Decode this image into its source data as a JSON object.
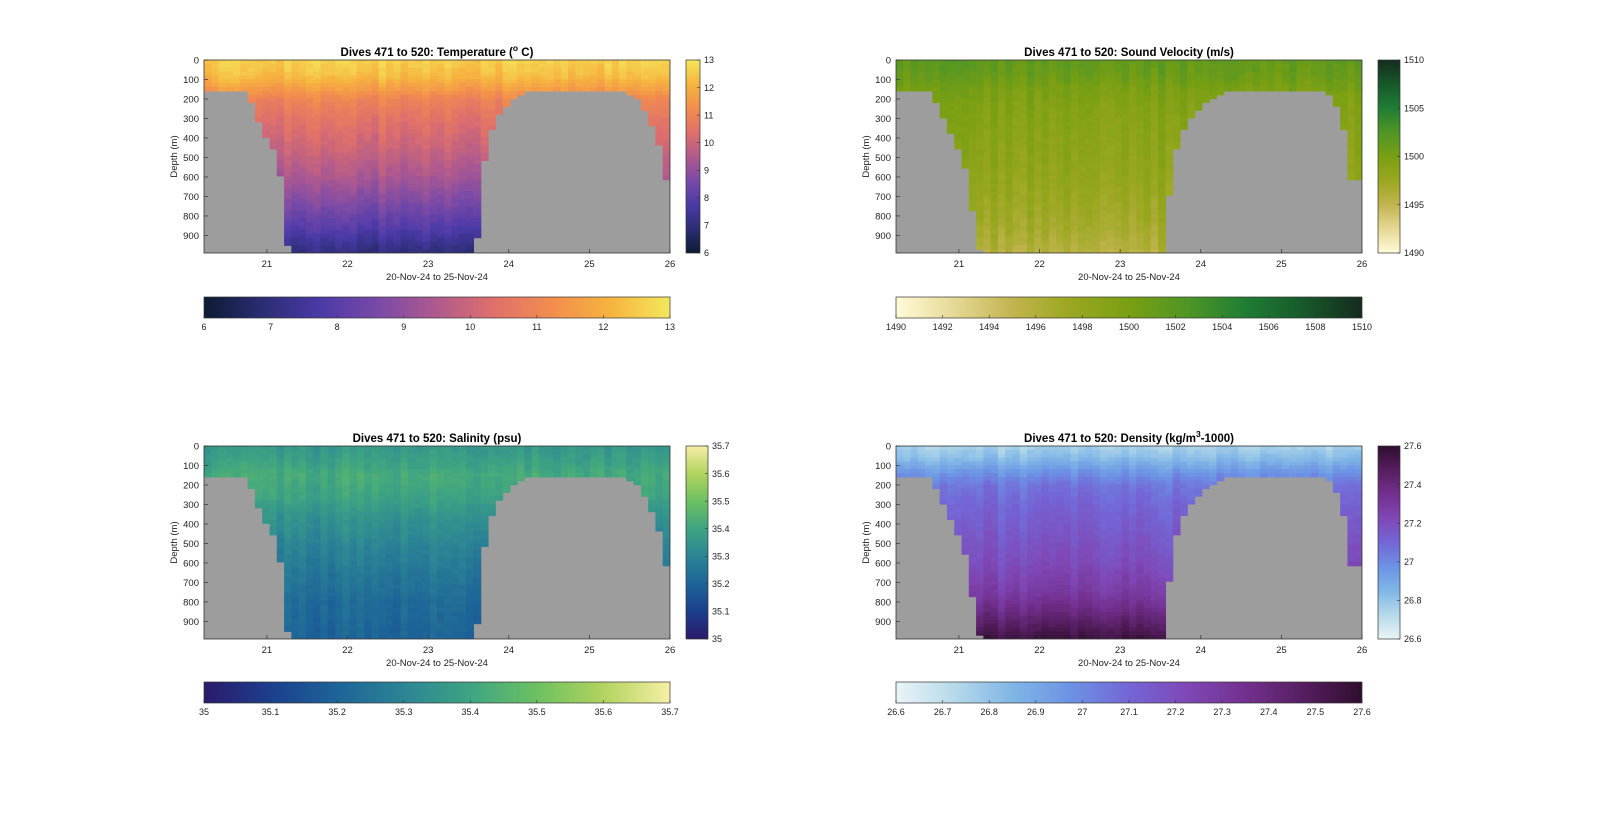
{
  "chart_data": [
    {
      "type": "heatmap",
      "title": "Dives 471 to 520: Temperature (",
      "title_sup": "o",
      "title_end": " C)",
      "xlabel": "20-Nov-24 to 25-Nov-24",
      "ylabel": "Depth (m)",
      "x_ticks": [
        "21",
        "22",
        "23",
        "24",
        "25",
        "26"
      ],
      "y_ticks": [
        "0",
        "100",
        "200",
        "300",
        "400",
        "500",
        "600",
        "700",
        "800",
        "900"
      ],
      "xlim": [
        20.22,
        26.0
      ],
      "ylim": [
        0,
        990
      ],
      "clim": [
        6,
        13
      ],
      "colorbar_ticks": [
        "6",
        "7",
        "8",
        "9",
        "10",
        "11",
        "12",
        "13"
      ],
      "horizontal_colorbar_ticks": [
        "6",
        "7",
        "8",
        "9",
        "10",
        "11",
        "12",
        "13"
      ],
      "colormap": [
        "#0d1b33",
        "#2b2d73",
        "#4b3aa8",
        "#7a4aa7",
        "#b05a8e",
        "#e0706a",
        "#f28e4d",
        "#f6b43f",
        "#f4e85c"
      ],
      "profile": [
        [
          0,
          12.6
        ],
        [
          80,
          12.3
        ],
        [
          140,
          11.7
        ],
        [
          200,
          11.0
        ],
        [
          300,
          10.5
        ],
        [
          450,
          10.0
        ],
        [
          600,
          9.4
        ],
        [
          750,
          8.6
        ],
        [
          850,
          8.0
        ],
        [
          950,
          7.3
        ],
        [
          990,
          7.0
        ]
      ],
      "no_data_color": "#9d9d9d",
      "seafloor": [
        [
          20.22,
          155
        ],
        [
          20.7,
          158
        ],
        [
          20.8,
          205
        ],
        [
          20.88,
          300
        ],
        [
          21.0,
          400
        ],
        [
          21.15,
          520
        ],
        [
          21.27,
          990
        ],
        [
          23.6,
          990
        ],
        [
          23.62,
          740
        ],
        [
          23.72,
          440
        ],
        [
          23.8,
          330
        ],
        [
          23.92,
          250
        ],
        [
          24.05,
          200
        ],
        [
          24.2,
          165
        ],
        [
          24.4,
          158
        ],
        [
          25.3,
          158
        ],
        [
          25.55,
          175
        ],
        [
          25.65,
          230
        ],
        [
          25.75,
          290
        ],
        [
          25.8,
          400
        ],
        [
          25.87,
          430
        ],
        [
          25.88,
          600
        ],
        [
          26.0,
          630
        ]
      ]
    },
    {
      "type": "heatmap",
      "title": "Dives 471 to 520: Sound Velocity (m/s)",
      "xlabel": "20-Nov-24 to 25-Nov-24",
      "ylabel": "Depth (m)",
      "x_ticks": [
        "21",
        "22",
        "23",
        "24",
        "25",
        "26"
      ],
      "y_ticks": [
        "0",
        "100",
        "200",
        "300",
        "400",
        "500",
        "600",
        "700",
        "800",
        "900"
      ],
      "xlim": [
        20.22,
        26.0
      ],
      "ylim": [
        0,
        990
      ],
      "clim": [
        1490,
        1510
      ],
      "colorbar_ticks": [
        "1490",
        "1495",
        "1500",
        "1505",
        "1510"
      ],
      "horizontal_colorbar_ticks": [
        "1490",
        "1492",
        "1494",
        "1496",
        "1498",
        "1500",
        "1502",
        "1504",
        "1506",
        "1508",
        "1510"
      ],
      "colormap": [
        "#fffbd8",
        "#e5d895",
        "#c2b44f",
        "#9aa720",
        "#7a9f12",
        "#4f9626",
        "#1f7d33",
        "#17592a",
        "#152b1f"
      ],
      "profile": [
        [
          0,
          1501.5
        ],
        [
          80,
          1501.0
        ],
        [
          150,
          1500.0
        ],
        [
          250,
          1499.3
        ],
        [
          400,
          1498.8
        ],
        [
          550,
          1498.4
        ],
        [
          700,
          1497.7
        ],
        [
          850,
          1497.0
        ],
        [
          950,
          1496.2
        ],
        [
          990,
          1495.8
        ]
      ],
      "no_data_color": "#9d9d9d",
      "seafloor": [
        [
          20.22,
          155
        ],
        [
          20.62,
          158
        ],
        [
          20.72,
          210
        ],
        [
          20.82,
          320
        ],
        [
          20.95,
          420
        ],
        [
          21.06,
          520
        ],
        [
          21.27,
          990
        ],
        [
          23.55,
          990
        ],
        [
          23.57,
          800
        ],
        [
          23.67,
          530
        ],
        [
          23.72,
          410
        ],
        [
          23.85,
          320
        ],
        [
          23.98,
          250
        ],
        [
          24.1,
          200
        ],
        [
          24.3,
          165
        ],
        [
          24.4,
          155
        ],
        [
          25.55,
          158
        ],
        [
          25.65,
          190
        ],
        [
          25.72,
          280
        ],
        [
          25.8,
          380
        ],
        [
          25.82,
          600
        ],
        [
          26.0,
          620
        ]
      ]
    },
    {
      "type": "heatmap",
      "title": "Dives 471 to 520: Salinity (psu)",
      "xlabel": "20-Nov-24 to 25-Nov-24",
      "ylabel": "Depth (m)",
      "x_ticks": [
        "21",
        "22",
        "23",
        "24",
        "25",
        "26"
      ],
      "y_ticks": [
        "0",
        "100",
        "200",
        "300",
        "400",
        "500",
        "600",
        "700",
        "800",
        "900"
      ],
      "xlim": [
        20.22,
        26.0
      ],
      "ylim": [
        0,
        990
      ],
      "clim": [
        35,
        35.7
      ],
      "colorbar_ticks": [
        "35",
        "35.1",
        "35.2",
        "35.3",
        "35.4",
        "35.5",
        "35.6",
        "35.7"
      ],
      "horizontal_colorbar_ticks": [
        "35",
        "35.1",
        "35.2",
        "35.3",
        "35.4",
        "35.5",
        "35.6",
        "35.7"
      ],
      "colormap": [
        "#2b1a6a",
        "#1c3f8d",
        "#1d6498",
        "#2c8595",
        "#3ea482",
        "#6cc061",
        "#b2d35f",
        "#f6efa6"
      ],
      "profile": [
        [
          0,
          35.36
        ],
        [
          60,
          35.38
        ],
        [
          150,
          35.42
        ],
        [
          250,
          35.4
        ],
        [
          350,
          35.35
        ],
        [
          500,
          35.3
        ],
        [
          650,
          35.26
        ],
        [
          800,
          35.22
        ],
        [
          990,
          35.2
        ]
      ],
      "no_data_color": "#9d9d9d",
      "seafloor": [
        [
          20.22,
          155
        ],
        [
          20.7,
          158
        ],
        [
          20.8,
          205
        ],
        [
          20.88,
          300
        ],
        [
          21.0,
          400
        ],
        [
          21.15,
          520
        ],
        [
          21.27,
          990
        ],
        [
          23.6,
          990
        ],
        [
          23.62,
          740
        ],
        [
          23.72,
          440
        ],
        [
          23.8,
          330
        ],
        [
          23.92,
          250
        ],
        [
          24.05,
          200
        ],
        [
          24.2,
          165
        ],
        [
          24.4,
          158
        ],
        [
          25.3,
          158
        ],
        [
          25.55,
          175
        ],
        [
          25.65,
          230
        ],
        [
          25.75,
          290
        ],
        [
          25.8,
          400
        ],
        [
          25.87,
          430
        ],
        [
          25.88,
          600
        ],
        [
          26.0,
          630
        ]
      ]
    },
    {
      "type": "heatmap",
      "title": "Dives 471 to 520: Density (kg/m",
      "title_sup": "3",
      "title_end": "-1000)",
      "xlabel": "20-Nov-24 to 25-Nov-24",
      "ylabel": "Depth (m)",
      "x_ticks": [
        "21",
        "22",
        "23",
        "24",
        "25",
        "26"
      ],
      "y_ticks": [
        "0",
        "100",
        "200",
        "300",
        "400",
        "500",
        "600",
        "700",
        "800",
        "900"
      ],
      "xlim": [
        20.22,
        26.0
      ],
      "ylim": [
        0,
        990
      ],
      "clim": [
        26.6,
        27.6
      ],
      "colorbar_ticks": [
        "26.6",
        "26.8",
        "27",
        "27.2",
        "27.4",
        "27.6"
      ],
      "horizontal_colorbar_ticks": [
        "26.6",
        "26.7",
        "26.8",
        "26.9",
        "27",
        "27.1",
        "27.2",
        "27.3",
        "27.4",
        "27.5",
        "27.6"
      ],
      "colormap": [
        "#eaf4f6",
        "#b6d9ea",
        "#80b6e6",
        "#6c92e4",
        "#7466d6",
        "#7f48b6",
        "#73308f",
        "#561e60",
        "#2f0e2e"
      ],
      "profile": [
        [
          0,
          26.75
        ],
        [
          60,
          26.82
        ],
        [
          130,
          26.95
        ],
        [
          200,
          27.05
        ],
        [
          300,
          27.1
        ],
        [
          450,
          27.15
        ],
        [
          600,
          27.2
        ],
        [
          750,
          27.28
        ],
        [
          850,
          27.38
        ],
        [
          950,
          27.5
        ],
        [
          990,
          27.55
        ]
      ],
      "no_data_color": "#9d9d9d",
      "seafloor": [
        [
          20.22,
          155
        ],
        [
          20.62,
          158
        ],
        [
          20.72,
          210
        ],
        [
          20.82,
          320
        ],
        [
          20.95,
          420
        ],
        [
          21.06,
          520
        ],
        [
          21.27,
          990
        ],
        [
          23.55,
          990
        ],
        [
          23.57,
          800
        ],
        [
          23.67,
          530
        ],
        [
          23.72,
          410
        ],
        [
          23.85,
          320
        ],
        [
          23.98,
          250
        ],
        [
          24.1,
          200
        ],
        [
          24.3,
          165
        ],
        [
          24.4,
          155
        ],
        [
          25.55,
          158
        ],
        [
          25.65,
          190
        ],
        [
          25.72,
          280
        ],
        [
          25.8,
          380
        ],
        [
          25.82,
          600
        ],
        [
          26.0,
          620
        ]
      ]
    }
  ]
}
